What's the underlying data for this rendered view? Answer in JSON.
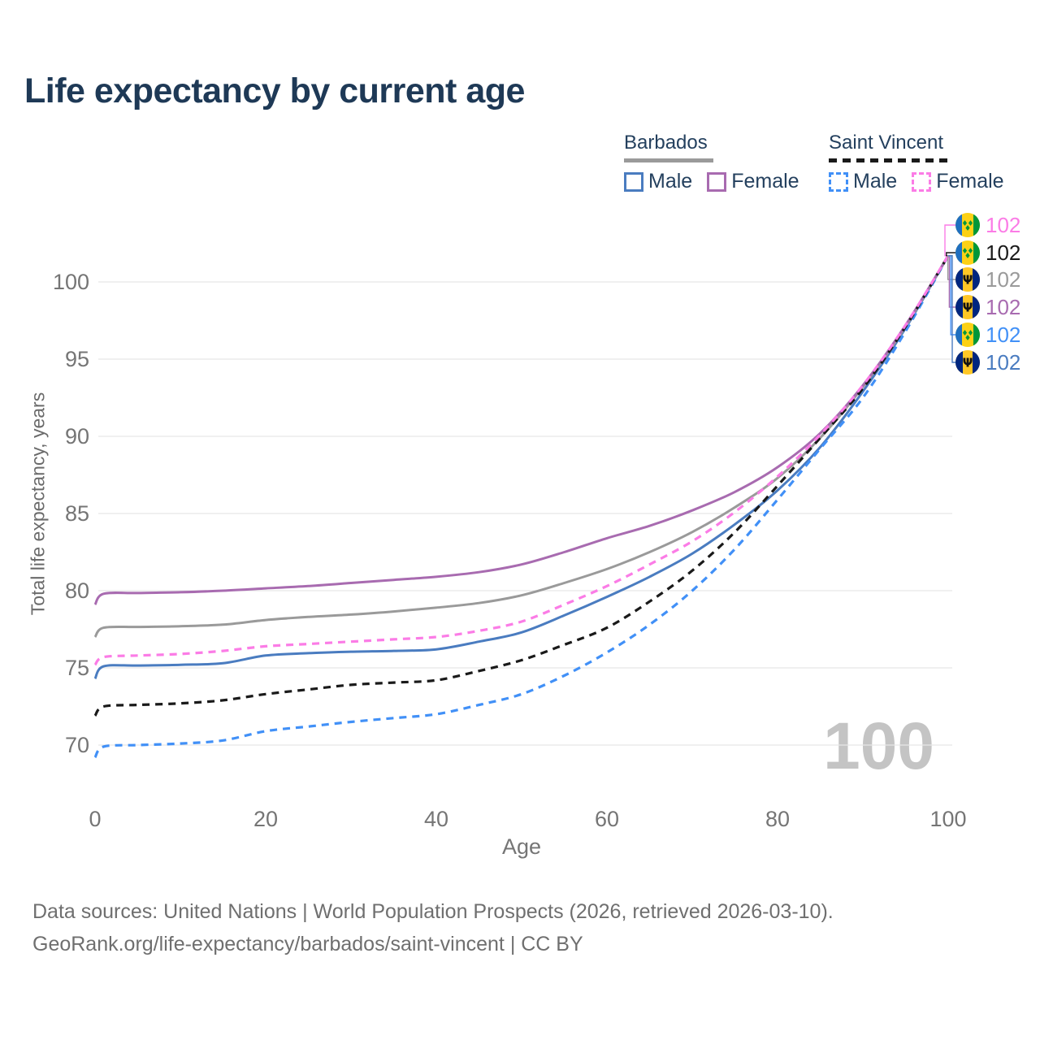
{
  "title": "Life expectancy by current age",
  "legend": {
    "groups": [
      {
        "label": "Barbados",
        "line_style": "solid",
        "underline_color": "#9a9a9a",
        "items": [
          {
            "label": "Male",
            "color": "#4a7cc0"
          },
          {
            "label": "Female",
            "color": "#a86bb0"
          }
        ]
      },
      {
        "label": "Saint Vincent",
        "line_style": "dashed",
        "underline_color": "#1a1a1a",
        "items": [
          {
            "label": "Male",
            "color": "#4190f7"
          },
          {
            "label": "Female",
            "color": "#fb7ce6"
          }
        ]
      }
    ]
  },
  "watermark": "100",
  "end_labels": [
    {
      "series": "Saint Vincent Female",
      "flag": "saint-vincent",
      "value": "102",
      "color": "#fb7ce6"
    },
    {
      "series": "Saint Vincent (both sexes)",
      "flag": "saint-vincent",
      "value": "102",
      "color": "#1a1a1a"
    },
    {
      "series": "Barbados (both sexes)",
      "flag": "barbados",
      "value": "102",
      "color": "#9a9a9a"
    },
    {
      "series": "Barbados Female",
      "flag": "barbados",
      "value": "102",
      "color": "#a86bb0"
    },
    {
      "series": "Saint Vincent Male",
      "flag": "saint-vincent",
      "value": "102",
      "color": "#4190f7"
    },
    {
      "series": "Barbados Male",
      "flag": "barbados",
      "value": "102",
      "color": "#4a7cc0"
    }
  ],
  "footer": {
    "line1": "Data sources: United Nations | World Population Prospects (2026, retrieved 2026-03-10).",
    "line2": "GeoRank.org/life-expectancy/barbados/saint-vincent | CC BY"
  },
  "chart_data": {
    "type": "line",
    "title": "Life expectancy by current age",
    "xlabel": "Age",
    "ylabel": "Total life expectancy, years",
    "xlim": [
      0,
      100
    ],
    "ylim": [
      68.5,
      103
    ],
    "xticks": [
      0,
      20,
      40,
      60,
      80,
      100
    ],
    "yticks": [
      70,
      75,
      80,
      85,
      90,
      95,
      100
    ],
    "grid": "horizontal",
    "legend_position": "top-right",
    "x": [
      0,
      1,
      5,
      10,
      15,
      20,
      25,
      30,
      35,
      40,
      45,
      50,
      55,
      60,
      65,
      70,
      75,
      80,
      85,
      90,
      95,
      100
    ],
    "series": [
      {
        "name": "Barbados Male",
        "country": "Barbados",
        "sex": "Male",
        "color": "#4a7cc0",
        "dash": "solid",
        "values": [
          74.3,
          75.1,
          75.15,
          75.2,
          75.3,
          75.8,
          75.95,
          76.05,
          76.1,
          76.2,
          76.7,
          77.3,
          78.4,
          79.6,
          80.9,
          82.4,
          84.3,
          86.5,
          89.3,
          92.9,
          97.0,
          101.7
        ]
      },
      {
        "name": "Barbados (both sexes)",
        "country": "Barbados",
        "sex": "Both",
        "color": "#9a9a9a",
        "dash": "solid",
        "values": [
          77.0,
          77.6,
          77.65,
          77.7,
          77.8,
          78.1,
          78.3,
          78.45,
          78.65,
          78.9,
          79.2,
          79.7,
          80.5,
          81.4,
          82.5,
          83.8,
          85.4,
          87.3,
          89.9,
          93.2,
          97.1,
          101.7
        ]
      },
      {
        "name": "Barbados Female",
        "country": "Barbados",
        "sex": "Female",
        "color": "#a86bb0",
        "dash": "solid",
        "values": [
          79.1,
          79.8,
          79.85,
          79.9,
          80.0,
          80.15,
          80.3,
          80.5,
          80.7,
          80.9,
          81.2,
          81.7,
          82.5,
          83.4,
          84.2,
          85.2,
          86.4,
          88.0,
          90.2,
          93.3,
          97.2,
          101.7
        ]
      },
      {
        "name": "Saint Vincent Male",
        "country": "Saint Vincent",
        "sex": "Male",
        "color": "#4190f7",
        "dash": "dashed",
        "values": [
          69.2,
          69.9,
          70.0,
          70.1,
          70.3,
          70.9,
          71.2,
          71.5,
          71.75,
          72.0,
          72.6,
          73.3,
          74.5,
          76.0,
          77.8,
          80.0,
          82.7,
          85.9,
          89.2,
          92.5,
          96.8,
          101.7
        ]
      },
      {
        "name": "Saint Vincent (both sexes)",
        "country": "Saint Vincent",
        "sex": "Both",
        "color": "#1a1a1a",
        "dash": "dashed",
        "values": [
          71.9,
          72.5,
          72.6,
          72.7,
          72.9,
          73.3,
          73.6,
          73.9,
          74.05,
          74.2,
          74.8,
          75.5,
          76.5,
          77.6,
          79.3,
          81.3,
          83.8,
          86.8,
          89.9,
          93.1,
          97.1,
          101.7
        ]
      },
      {
        "name": "Saint Vincent Female",
        "country": "Saint Vincent",
        "sex": "Female",
        "color": "#fb7ce6",
        "dash": "dashed",
        "values": [
          75.2,
          75.7,
          75.8,
          75.9,
          76.1,
          76.4,
          76.55,
          76.7,
          76.85,
          77.0,
          77.4,
          78.0,
          79.1,
          80.3,
          81.7,
          83.2,
          85.1,
          87.4,
          90.1,
          93.3,
          97.2,
          101.7
        ]
      }
    ]
  }
}
